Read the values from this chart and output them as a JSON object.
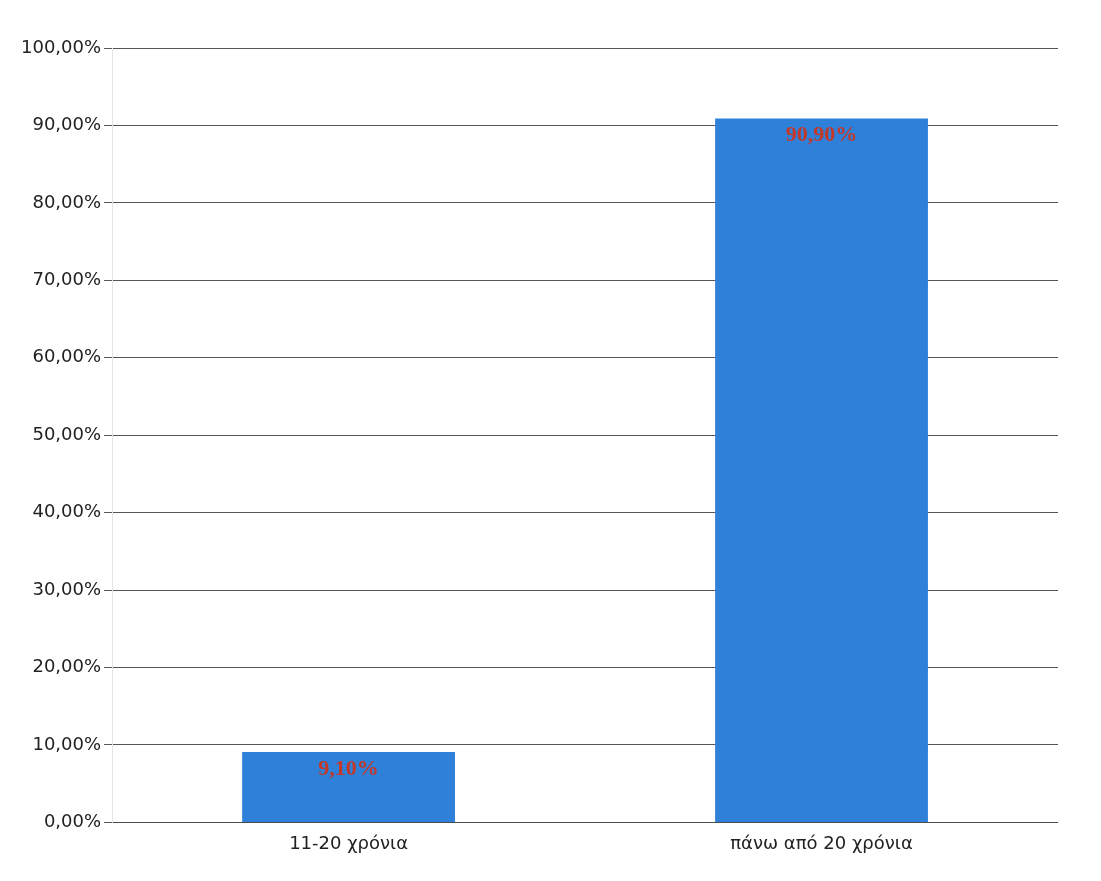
{
  "chart_data": {
    "type": "bar",
    "categories": [
      "11-20 χρόνια",
      "πάνω από 20 χρόνια"
    ],
    "values": [
      9.1,
      90.9
    ],
    "color": "#2f80d8",
    "value_labels": [
      "9,10%",
      "90,90%"
    ],
    "ylim": [
      0,
      100
    ],
    "yticks": [
      {
        "value": 0,
        "label": "0,00%"
      },
      {
        "value": 10,
        "label": "10,00%"
      },
      {
        "value": 20,
        "label": "20,00%"
      },
      {
        "value": 30,
        "label": "30,00%"
      },
      {
        "value": 40,
        "label": "40,00%"
      },
      {
        "value": 50,
        "label": "50,00%"
      },
      {
        "value": 60,
        "label": "60,00%"
      },
      {
        "value": 70,
        "label": "70,00%"
      },
      {
        "value": 80,
        "label": "80,00%"
      },
      {
        "value": 90,
        "label": "90,00%"
      },
      {
        "value": 100,
        "label": "100,00%"
      }
    ],
    "grid": "y",
    "legend": false
  }
}
